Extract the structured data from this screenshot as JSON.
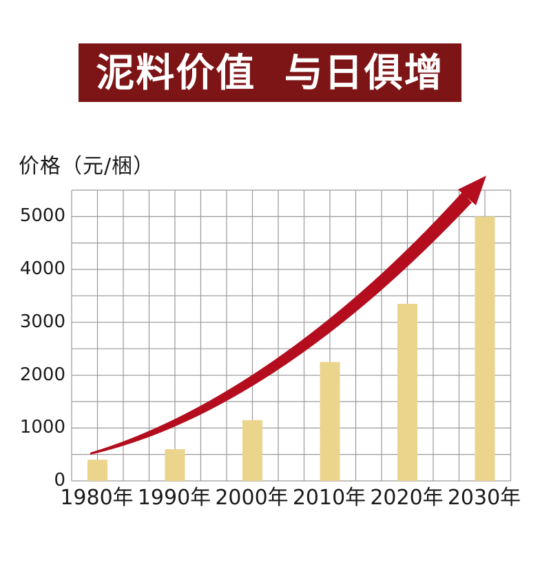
{
  "banner": {
    "title": "泥料价值 与日俱增",
    "bg_color": "#7D1516",
    "text_color": "#FFFFFF"
  },
  "chart_data": {
    "type": "bar",
    "title": "泥料价值 与日俱增",
    "ylabel": "价格（元/梱）",
    "xlabel": "",
    "categories": [
      "1980年",
      "1990年",
      "2000年",
      "2010年",
      "2020年",
      "2030年"
    ],
    "values": [
      400,
      600,
      1150,
      2250,
      3350,
      5000
    ],
    "y_ticks": [
      0,
      1000,
      2000,
      3000,
      4000,
      5000
    ],
    "ylim": [
      0,
      5500
    ],
    "grid": "on",
    "grid_minor_step": 500,
    "legend": "none",
    "bar_color": "#EBD58C",
    "grid_color": "#999999",
    "tick_color": "#1A1A1A",
    "trend_arrow": {
      "shape": "curved-swoosh",
      "color": "#B30D1E",
      "meaning": "price rising over time"
    }
  }
}
